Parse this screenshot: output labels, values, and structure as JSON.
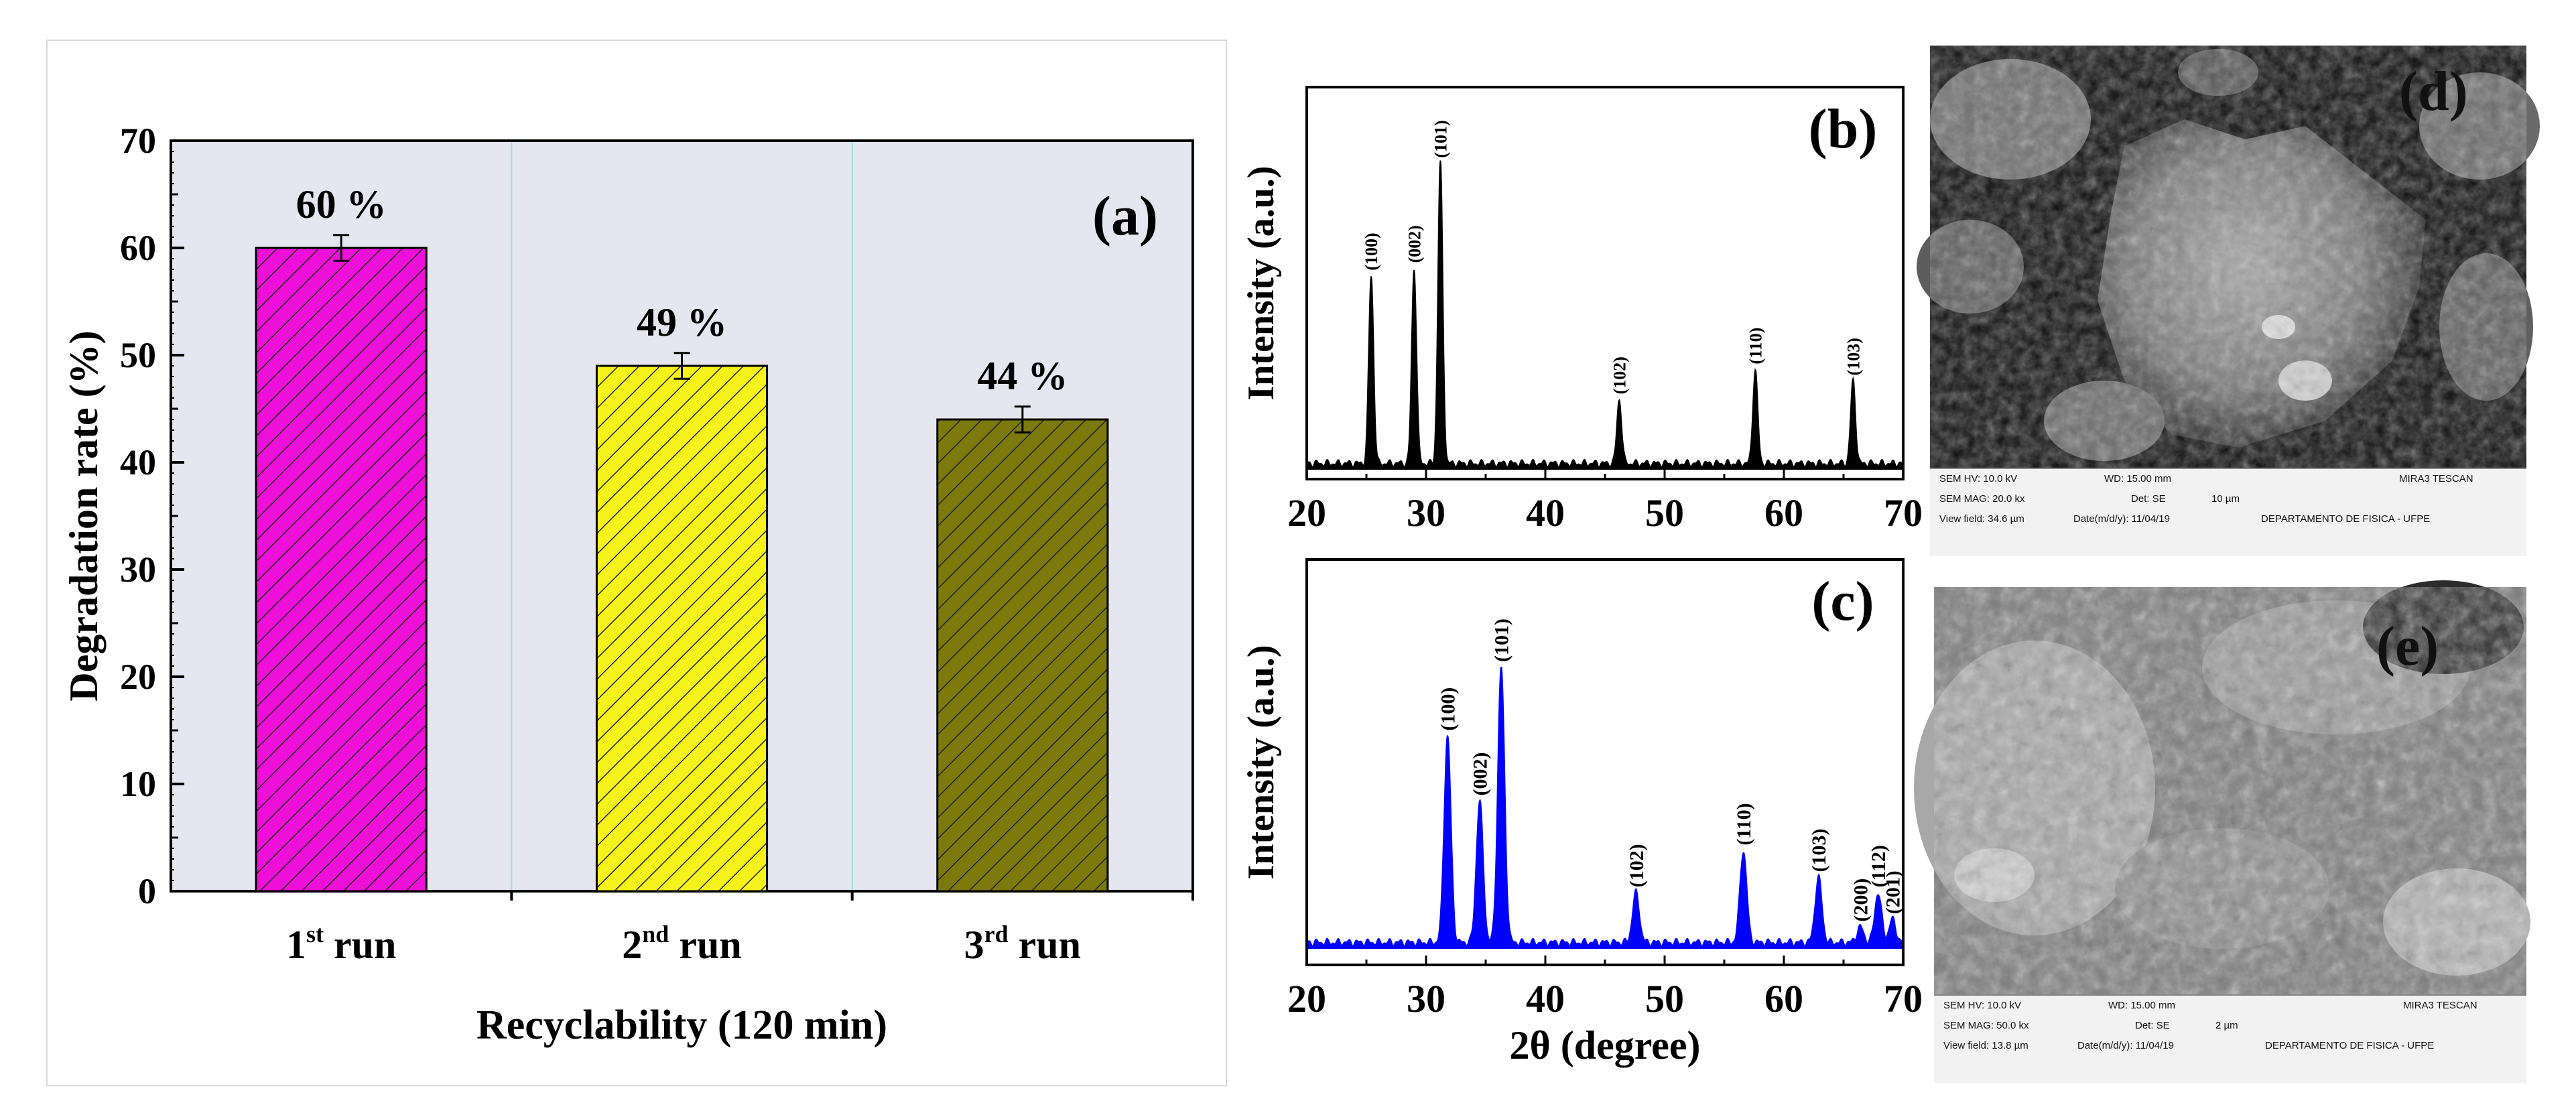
{
  "chart_data": [
    {
      "panel_label": "(a)",
      "type": "bar",
      "categories": [
        {
          "main": "1",
          "sup": "st",
          "rest": " run"
        },
        {
          "main": "2",
          "sup": "nd",
          "rest": " run"
        },
        {
          "main": "3",
          "sup": "rd",
          "rest": " run"
        }
      ],
      "values": [
        60,
        49,
        44
      ],
      "errors": [
        1.2,
        1.2,
        1.2
      ],
      "data_labels": [
        "60 %",
        "49 %",
        "44 %"
      ],
      "colors": [
        "#ee0fd8",
        "#f6f21b",
        "#7c7a0c"
      ],
      "xlabel": "Recyclability (120 min)",
      "ylabel": "Degradation rate (%)",
      "ylim": [
        0,
        70
      ],
      "yticks": [
        "0",
        "10",
        "20",
        "30",
        "40",
        "50",
        "60",
        "70"
      ],
      "grid": "vertical lines between runs",
      "background": "#e6e6f0"
    },
    {
      "panel_label": "(b)",
      "type": "line",
      "ylabel": "Intensity (a.u.)",
      "xlim": [
        20,
        70
      ],
      "xticks": [
        "20",
        "30",
        "40",
        "50",
        "60",
        "70"
      ],
      "color": "#000000",
      "peaks": [
        {
          "x": 25.4,
          "height": 0.5,
          "label": "(100)"
        },
        {
          "x": 29.0,
          "height": 0.52,
          "label": "(002)"
        },
        {
          "x": 31.2,
          "height": 0.8,
          "label": "(101)"
        },
        {
          "x": 46.2,
          "height": 0.17,
          "label": "(102)"
        },
        {
          "x": 57.6,
          "height": 0.25,
          "label": "(110)"
        },
        {
          "x": 65.8,
          "height": 0.22,
          "label": "(103)"
        }
      ]
    },
    {
      "panel_label": "(c)",
      "type": "line",
      "ylabel": "Intensity (a.u.)",
      "xlabel": "2θ (degree)",
      "xlim": [
        20,
        70
      ],
      "xticks": [
        "20",
        "30",
        "40",
        "50",
        "60",
        "70"
      ],
      "color": "#0000ff",
      "peaks": [
        {
          "x": 31.8,
          "height": 0.54,
          "label": "(100)"
        },
        {
          "x": 34.5,
          "height": 0.37,
          "label": "(002)"
        },
        {
          "x": 36.3,
          "height": 0.72,
          "label": "(101)"
        },
        {
          "x": 47.6,
          "height": 0.13,
          "label": "(102)"
        },
        {
          "x": 56.6,
          "height": 0.24,
          "label": "(110)"
        },
        {
          "x": 62.9,
          "height": 0.17,
          "label": "(103)"
        },
        {
          "x": 66.4,
          "height": 0.04,
          "label": "(200)"
        },
        {
          "x": 67.9,
          "height": 0.13,
          "label": "(112)"
        },
        {
          "x": 69.1,
          "height": 0.06,
          "label": "(201)"
        }
      ]
    }
  ],
  "sem_panels": [
    {
      "panel_label": "(d)",
      "row1": [
        "SEM HV: 10.0 kV",
        "WD: 15.00 mm",
        "MIRA3 TESCAN"
      ],
      "row2": [
        "SEM MAG: 20.0 kx",
        "Det: SE",
        "10 µm"
      ],
      "row3": [
        "View field: 34.6 µm",
        "Date(m/d/y): 11/04/19",
        "DEPARTAMENTO DE FISICA - UFPE"
      ]
    },
    {
      "panel_label": "(e)",
      "row1": [
        "SEM HV: 10.0 kV",
        "WD: 15.00 mm",
        "MIRA3 TESCAN"
      ],
      "row2": [
        "SEM MAG: 50.0 kx",
        "Det: SE",
        "2 µm"
      ],
      "row3": [
        "View field: 13.8 µm",
        "Date(m/d/y): 11/04/19",
        "DEPARTAMENTO DE FISICA - UFPE"
      ]
    }
  ]
}
